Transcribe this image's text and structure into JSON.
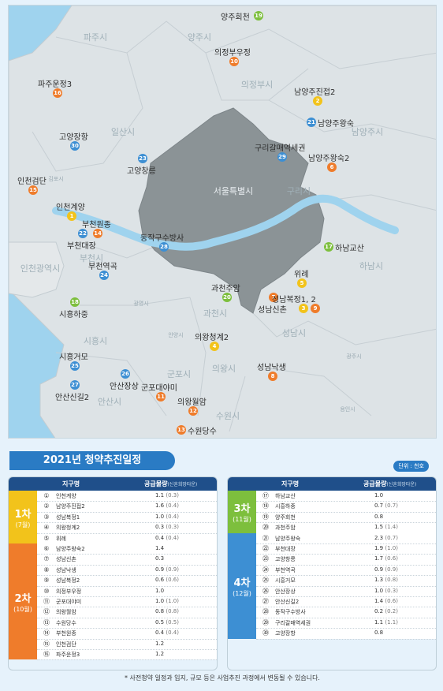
{
  "regions": [
    {
      "name": "파주시",
      "style": "big"
    },
    {
      "name": "양주시",
      "style": "big"
    },
    {
      "name": "의정부시",
      "style": "big"
    },
    {
      "name": "남양주시",
      "style": "big"
    },
    {
      "name": "일산시",
      "style": "big"
    },
    {
      "name": "김포시",
      "style": "sm"
    },
    {
      "name": "서울특별시",
      "style": "seoul"
    },
    {
      "name": "구리시",
      "style": "big"
    },
    {
      "name": "하남시",
      "style": "big"
    },
    {
      "name": "부천시",
      "style": "big"
    },
    {
      "name": "인천광역시",
      "style": "big"
    },
    {
      "name": "광명시",
      "style": "sm"
    },
    {
      "name": "과천시",
      "style": "big"
    },
    {
      "name": "성남시",
      "style": "big"
    },
    {
      "name": "안양시",
      "style": "sm"
    },
    {
      "name": "시흥시",
      "style": "big"
    },
    {
      "name": "군포시",
      "style": "big"
    },
    {
      "name": "의왕시",
      "style": "big"
    },
    {
      "name": "광주시",
      "style": "sm"
    },
    {
      "name": "안산시",
      "style": "big"
    },
    {
      "name": "수원시",
      "style": "big"
    },
    {
      "name": "용인시",
      "style": "sm"
    }
  ],
  "markers": [
    {
      "num": "19",
      "label": "양주회천",
      "color": "#7dbf3d",
      "cls": "c-g",
      "pos": "label-left"
    },
    {
      "num": "10",
      "label": "의정부우정",
      "color": "#ef7c2b",
      "cls": "c-o",
      "pos": "label-top"
    },
    {
      "num": "2",
      "label": "남양주진접2",
      "color": "#f2c31b",
      "cls": "c-y",
      "pos": "label-top"
    },
    {
      "num": "16",
      "label": "파주운정3",
      "color": "#ef7c2b",
      "cls": "c-o",
      "pos": "label-top"
    },
    {
      "num": "21",
      "label": "남양주왕숙",
      "color": "#3d8fd3",
      "cls": "c-b",
      "pos": "label-right"
    },
    {
      "num": "30",
      "label": "고양장항",
      "color": "#3d8fd3",
      "cls": "c-b",
      "pos": "label-top"
    },
    {
      "num": "29",
      "label": "구리갈매역세권",
      "color": "#3d8fd3",
      "cls": "c-b",
      "pos": "label-top"
    },
    {
      "num": "6",
      "label": "남양주왕숙2",
      "color": "#ef7c2b",
      "cls": "c-o",
      "pos": "label-top"
    },
    {
      "num": "23",
      "label": "고양창릉",
      "color": "#3d8fd3",
      "cls": "c-b",
      "pos": "label-bottom"
    },
    {
      "num": "15",
      "label": "인천검단",
      "color": "#ef7c2b",
      "cls": "c-o",
      "pos": "label-top"
    },
    {
      "num": "1",
      "label": "인천계양",
      "color": "#f2c31b",
      "cls": "c-y",
      "pos": "label-top"
    },
    {
      "num": "22",
      "label": "부천대장",
      "color": "#3d8fd3",
      "cls": "c-b",
      "pos": "label-bottom"
    },
    {
      "num": "14",
      "label": "부천원종",
      "color": "#ef7c2b",
      "cls": "c-o",
      "pos": "label-top"
    },
    {
      "num": "28",
      "label": "동작구수방사",
      "color": "#3d8fd3",
      "cls": "c-b",
      "pos": "label-top"
    },
    {
      "num": "17",
      "label": "하남교산",
      "color": "#7dbf3d",
      "cls": "c-g",
      "pos": "label-right"
    },
    {
      "num": "24",
      "label": "부천역곡",
      "color": "#3d8fd3",
      "cls": "c-b",
      "pos": "label-top"
    },
    {
      "num": "5",
      "label": "위례",
      "color": "#f2c31b",
      "cls": "c-y",
      "pos": "label-top"
    },
    {
      "num": "20",
      "label": "과천주암",
      "color": "#7dbf3d",
      "cls": "c-g",
      "pos": "label-top"
    },
    {
      "num": "7",
      "label": "성남신촌",
      "color": "#ef7c2b",
      "cls": "c-o",
      "pos": "label-bottom"
    },
    {
      "num": "3",
      "label": "성남복정1, 2",
      "color": "#f2c31b",
      "cls": "c-y",
      "pos": "label-top"
    },
    {
      "num": "9",
      "label": "",
      "color": "#ef7c2b",
      "cls": "c-o",
      "pos": "none"
    },
    {
      "num": "18",
      "label": "시흥하중",
      "color": "#7dbf3d",
      "cls": "c-g",
      "pos": "label-bottom"
    },
    {
      "num": "4",
      "label": "의왕청계2",
      "color": "#f2c31b",
      "cls": "c-y",
      "pos": "label-top"
    },
    {
      "num": "25",
      "label": "시흥거모",
      "color": "#3d8fd3",
      "cls": "c-b",
      "pos": "label-top"
    },
    {
      "num": "8",
      "label": "성남낙생",
      "color": "#ef7c2b",
      "cls": "c-o",
      "pos": "label-top"
    },
    {
      "num": "26",
      "label": "안산장상",
      "color": "#3d8fd3",
      "cls": "c-b",
      "pos": "label-bottom"
    },
    {
      "num": "11",
      "label": "군포대야미",
      "color": "#ef7c2b",
      "cls": "c-o",
      "pos": "label-top"
    },
    {
      "num": "27",
      "label": "안산신길2",
      "color": "#3d8fd3",
      "cls": "c-b",
      "pos": "label-bottom"
    },
    {
      "num": "12",
      "label": "의왕월암",
      "color": "#ef7c2b",
      "cls": "c-o",
      "pos": "label-top"
    },
    {
      "num": "13",
      "label": "수원당수",
      "color": "#ef7c2b",
      "cls": "c-o",
      "pos": "label-right"
    }
  ],
  "schedule": {
    "title": "2021년 청약추진일정",
    "unit": "단위 : 천호",
    "col_name": "지구명",
    "col_qty": "공급물량",
    "col_qty_sub": "(신혼희망타운)",
    "groups": [
      {
        "round": "1차",
        "month": "(7월)",
        "color": "#f2c31b",
        "rows": [
          {
            "no": "①",
            "name": "인천계양",
            "qty": "1.1",
            "pp": "(0.3)"
          },
          {
            "no": "②",
            "name": "남양주진접2",
            "qty": "1.6",
            "pp": "(0.4)"
          },
          {
            "no": "③",
            "name": "성남복정1",
            "qty": "1.0",
            "pp": "(0.4)"
          },
          {
            "no": "④",
            "name": "의왕청계2",
            "qty": "0.3",
            "pp": "(0.3)"
          },
          {
            "no": "⑤",
            "name": "위례",
            "qty": "0.4",
            "pp": "(0.4)"
          }
        ]
      },
      {
        "round": "2차",
        "month": "(10월)",
        "color": "#ef7c2b",
        "rows": [
          {
            "no": "⑥",
            "name": "남양주왕숙2",
            "qty": "1.4",
            "pp": ""
          },
          {
            "no": "⑦",
            "name": "성남신촌",
            "qty": "0.3",
            "pp": ""
          },
          {
            "no": "⑧",
            "name": "성남낙생",
            "qty": "0.9",
            "pp": "(0.9)"
          },
          {
            "no": "⑨",
            "name": "성남복정2",
            "qty": "0.6",
            "pp": "(0.6)"
          },
          {
            "no": "⑩",
            "name": "의정부우정",
            "qty": "1.0",
            "pp": ""
          },
          {
            "no": "⑪",
            "name": "군포대야미",
            "qty": "1.0",
            "pp": "(1.0)"
          },
          {
            "no": "⑫",
            "name": "의왕월암",
            "qty": "0.8",
            "pp": "(0.8)"
          },
          {
            "no": "⑬",
            "name": "수원당수",
            "qty": "0.5",
            "pp": "(0.5)"
          },
          {
            "no": "⑭",
            "name": "부천원종",
            "qty": "0.4",
            "pp": "(0.4)"
          },
          {
            "no": "⑮",
            "name": "인천검단",
            "qty": "1.2",
            "pp": ""
          },
          {
            "no": "⑯",
            "name": "파주운정3",
            "qty": "1.2",
            "pp": ""
          }
        ]
      },
      {
        "round": "3차",
        "month": "(11월)",
        "color": "#7dbf3d",
        "rows": [
          {
            "no": "⑰",
            "name": "하남교산",
            "qty": "1.0",
            "pp": ""
          },
          {
            "no": "⑱",
            "name": "시흥하중",
            "qty": "0.7",
            "pp": "(0.7)"
          },
          {
            "no": "⑲",
            "name": "양주회천",
            "qty": "0.8",
            "pp": ""
          },
          {
            "no": "⑳",
            "name": "과천주암",
            "qty": "1.5",
            "pp": "(1.4)"
          }
        ]
      },
      {
        "round": "4차",
        "month": "(12월)",
        "color": "#3d8fd3",
        "rows": [
          {
            "no": "㉑",
            "name": "남양주왕숙",
            "qty": "2.3",
            "pp": "(0.7)"
          },
          {
            "no": "㉒",
            "name": "부천대장",
            "qty": "1.9",
            "pp": "(1.0)"
          },
          {
            "no": "㉓",
            "name": "고양창릉",
            "qty": "1.7",
            "pp": "(0.6)"
          },
          {
            "no": "㉔",
            "name": "부천역곡",
            "qty": "0.9",
            "pp": "(0.9)"
          },
          {
            "no": "㉕",
            "name": "시흥거모",
            "qty": "1.3",
            "pp": "(0.8)"
          },
          {
            "no": "㉖",
            "name": "안산장상",
            "qty": "1.0",
            "pp": "(0.3)"
          },
          {
            "no": "㉗",
            "name": "안산신길2",
            "qty": "1.4",
            "pp": "(0.6)"
          },
          {
            "no": "㉘",
            "name": "동작구수방사",
            "qty": "0.2",
            "pp": "(0.2)"
          },
          {
            "no": "㉙",
            "name": "구리갈매역세권",
            "qty": "1.1",
            "pp": "(1.1)"
          },
          {
            "no": "㉚",
            "name": "고양장항",
            "qty": "0.8",
            "pp": ""
          }
        ]
      }
    ],
    "note": "* 사전청약 일정과 입지, 규모 등은 사업추진 과정에서 변동될 수 있습니다."
  }
}
